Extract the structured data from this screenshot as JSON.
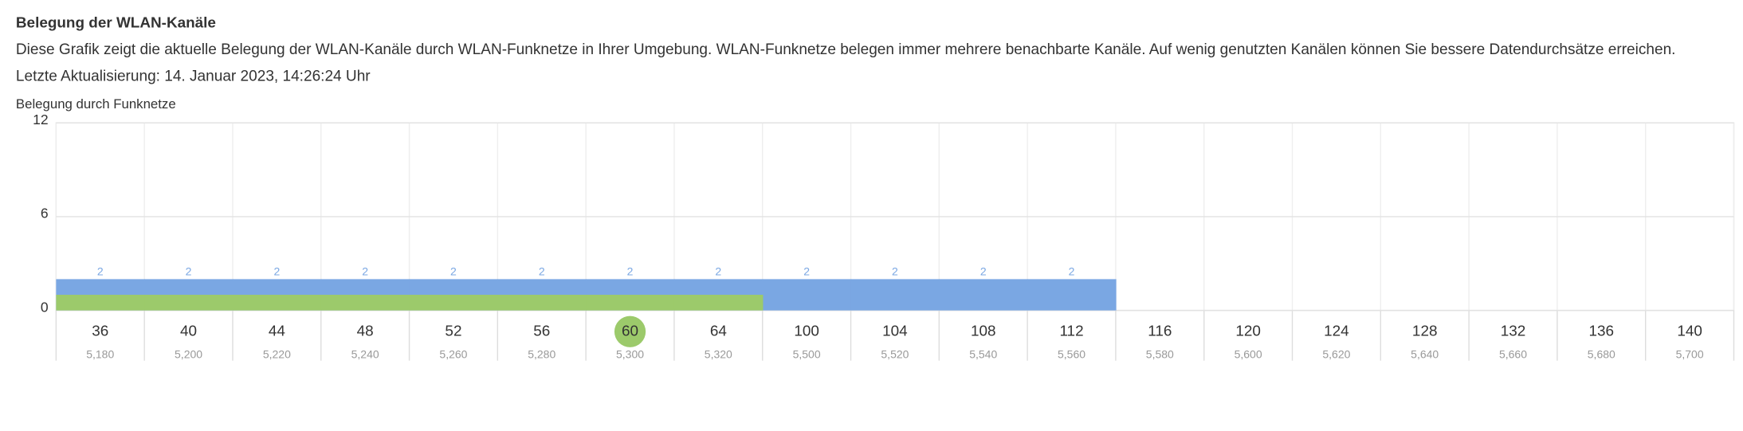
{
  "header": {
    "title": "Belegung der WLAN-Kanäle",
    "description": "Diese Grafik zeigt die aktuelle Belegung der WLAN-Kanäle durch WLAN-Funknetze in Ihrer Umgebung. WLAN-Funknetze belegen immer mehrere benachbarte Kanäle. Auf wenig genutzten Kanälen können Sie bessere Datendurchsätze erreichen.",
    "updated": "Letzte Aktualisierung: 14. Januar 2023, 14:26:24 Uhr"
  },
  "chart_data": {
    "type": "bar",
    "title": "Belegung durch Funknetze",
    "categories": [
      "36",
      "40",
      "44",
      "48",
      "52",
      "56",
      "60",
      "64",
      "100",
      "104",
      "108",
      "112",
      "116",
      "120",
      "124",
      "128",
      "132",
      "136",
      "140"
    ],
    "frequencies": [
      "5,180",
      "5,200",
      "5,220",
      "5,240",
      "5,260",
      "5,280",
      "5,300",
      "5,320",
      "5,500",
      "5,520",
      "5,540",
      "5,560",
      "5,580",
      "5,600",
      "5,620",
      "5,640",
      "5,660",
      "5,680",
      "5,700"
    ],
    "highlight": "60",
    "series": [
      {
        "color": "#7aa7e3",
        "values": [
          2,
          2,
          2,
          2,
          2,
          2,
          2,
          2,
          2,
          2,
          2,
          2,
          null,
          null,
          null,
          null,
          null,
          null,
          null
        ],
        "labels": true
      },
      {
        "color": "#9cca6b",
        "values": [
          1,
          1,
          1,
          1,
          1,
          1,
          1,
          1,
          null,
          null,
          null,
          null,
          null,
          null,
          null,
          null,
          null,
          null,
          null
        ]
      }
    ],
    "ylim": [
      0,
      12
    ],
    "yticks": [
      0,
      6,
      12
    ],
    "grid": true
  }
}
